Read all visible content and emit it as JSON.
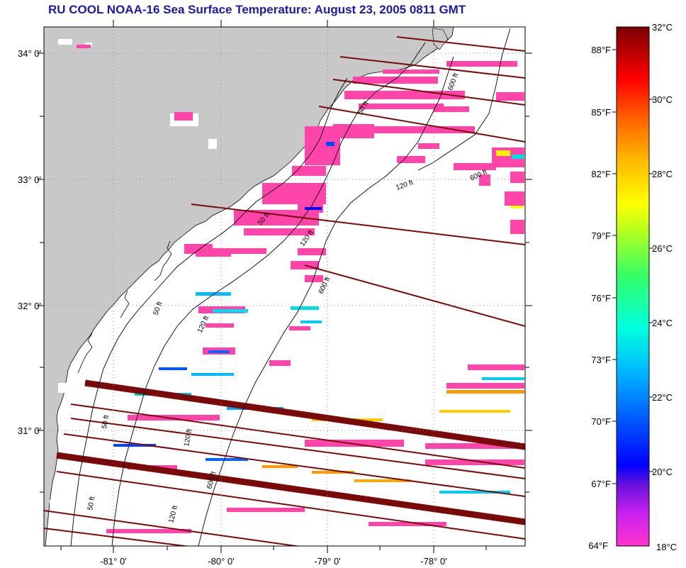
{
  "title": "RU COOL  NOAA-16  Sea Surface Temperature:  August 23, 2005 0811 GMT",
  "latitude_labels": [
    "34° 0'",
    "33° 0'",
    "32° 0'",
    "31° 0'"
  ],
  "longitude_labels": [
    "-81° 0'",
    "-80° 0'",
    "-79° 0'",
    "-78° 0'"
  ],
  "contour_labels": [
    "50 ft",
    "120 ft",
    "600 ft",
    "50 ft",
    "120 ft",
    "600 ft",
    "50 ft",
    "120 ft",
    "600 ft",
    "50 ft",
    "120 ft",
    "600 ft",
    "50 ft",
    "120 ft"
  ],
  "colorbar": {
    "fahrenheit_labels": [
      "88°F",
      "85°F",
      "82°F",
      "79°F",
      "76°F",
      "73°F",
      "70°F",
      "67°F",
      "64°F"
    ],
    "celsius_labels": [
      "32°C",
      "30°C",
      "28°C",
      "26°C",
      "24°C",
      "22°C",
      "20°C",
      "18°C"
    ]
  },
  "colors": {
    "title": "#1a1aa6",
    "land": "#c8c8c8",
    "swath_line": "#7a0a0a",
    "cold_sst": "#ff44aa"
  }
}
